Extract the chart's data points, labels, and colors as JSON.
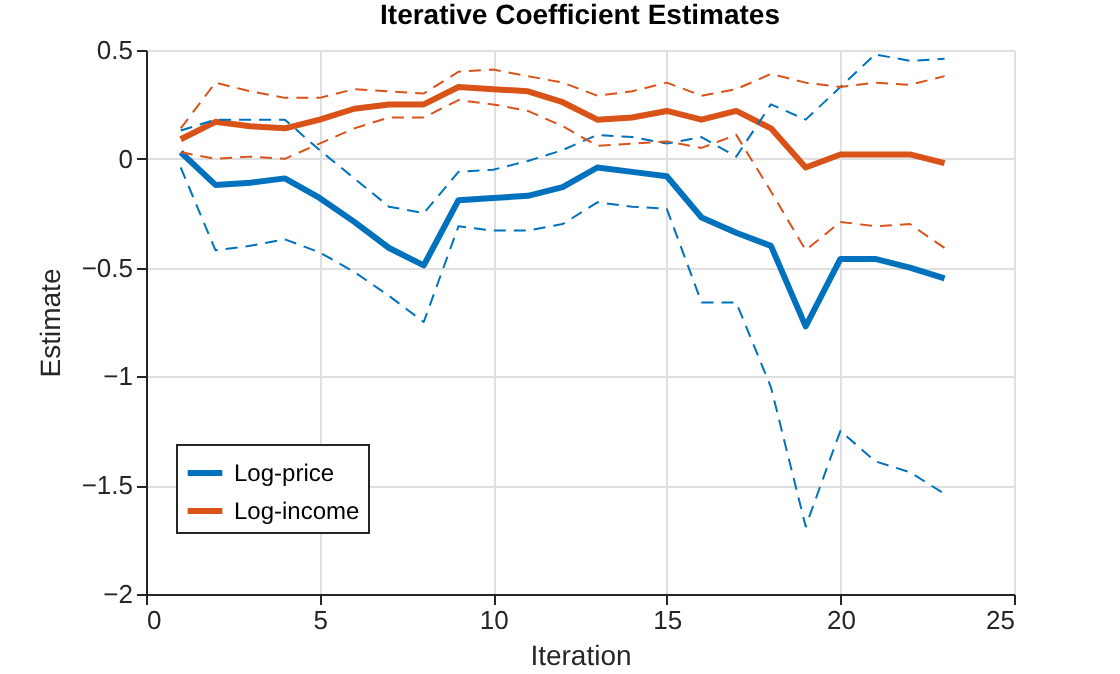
{
  "chart_data": {
    "type": "line",
    "title": "Iterative Coefficient Estimates",
    "xlabel": "Iteration",
    "ylabel": "Estimate",
    "x": [
      1,
      2,
      3,
      4,
      5,
      6,
      7,
      8,
      9,
      10,
      11,
      12,
      13,
      14,
      15,
      16,
      17,
      18,
      19,
      20,
      21,
      22,
      23
    ],
    "series": [
      {
        "name": "Log-price",
        "color": "#0072bd",
        "line_style": "solid",
        "values": [
          0.03,
          -0.12,
          -0.11,
          -0.09,
          -0.18,
          -0.29,
          -0.41,
          -0.49,
          -0.19,
          -0.18,
          -0.17,
          -0.13,
          -0.04,
          -0.06,
          -0.08,
          -0.27,
          -0.34,
          -0.4,
          -0.77,
          -0.46,
          -0.46,
          -0.5,
          -0.55
        ]
      },
      {
        "name": "Log-income",
        "color": "#d95319",
        "line_style": "solid",
        "values": [
          0.09,
          0.17,
          0.15,
          0.14,
          0.18,
          0.23,
          0.25,
          0.25,
          0.33,
          0.32,
          0.31,
          0.26,
          0.18,
          0.19,
          0.22,
          0.18,
          0.22,
          0.14,
          -0.04,
          0.02,
          0.02,
          0.02,
          -0.02
        ]
      },
      {
        "color": "#0072bd",
        "line_style": "dashed",
        "values": [
          0.13,
          0.18,
          0.18,
          0.18,
          0.04,
          -0.09,
          -0.22,
          -0.25,
          -0.06,
          -0.05,
          -0.01,
          0.04,
          0.11,
          0.1,
          0.07,
          0.1,
          0.01,
          0.25,
          0.18,
          0.33,
          0.48,
          0.45,
          0.46
        ]
      },
      {
        "color": "#0072bd",
        "line_style": "dashed",
        "values": [
          -0.04,
          -0.42,
          -0.4,
          -0.37,
          -0.43,
          -0.52,
          -0.63,
          -0.75,
          -0.31,
          -0.33,
          -0.33,
          -0.3,
          -0.2,
          -0.22,
          -0.23,
          -0.66,
          -0.66,
          -1.05,
          -1.69,
          -1.25,
          -1.39,
          -1.44,
          -1.54
        ]
      },
      {
        "color": "#d95319",
        "line_style": "dashed",
        "values": [
          0.14,
          0.35,
          0.31,
          0.28,
          0.28,
          0.32,
          0.31,
          0.3,
          0.4,
          0.41,
          0.38,
          0.35,
          0.29,
          0.31,
          0.35,
          0.29,
          0.32,
          0.39,
          0.35,
          0.33,
          0.35,
          0.34,
          0.38
        ]
      },
      {
        "color": "#d95319",
        "line_style": "dashed",
        "values": [
          0.03,
          0,
          0.01,
          0,
          0.07,
          0.14,
          0.19,
          0.19,
          0.27,
          0.25,
          0.22,
          0.15,
          0.06,
          0.07,
          0.08,
          0.05,
          0.11,
          -0.15,
          -0.42,
          -0.29,
          -0.31,
          -0.3,
          -0.41
        ]
      }
    ],
    "xlim": [
      0,
      25
    ],
    "xticks": [
      0,
      5,
      10,
      15,
      20,
      25
    ],
    "ylim": [
      -2,
      0.5
    ],
    "yticks": [
      -2,
      -1.5,
      -1,
      -0.5,
      0,
      0.5
    ],
    "grid": true,
    "legend": "bottom left"
  }
}
